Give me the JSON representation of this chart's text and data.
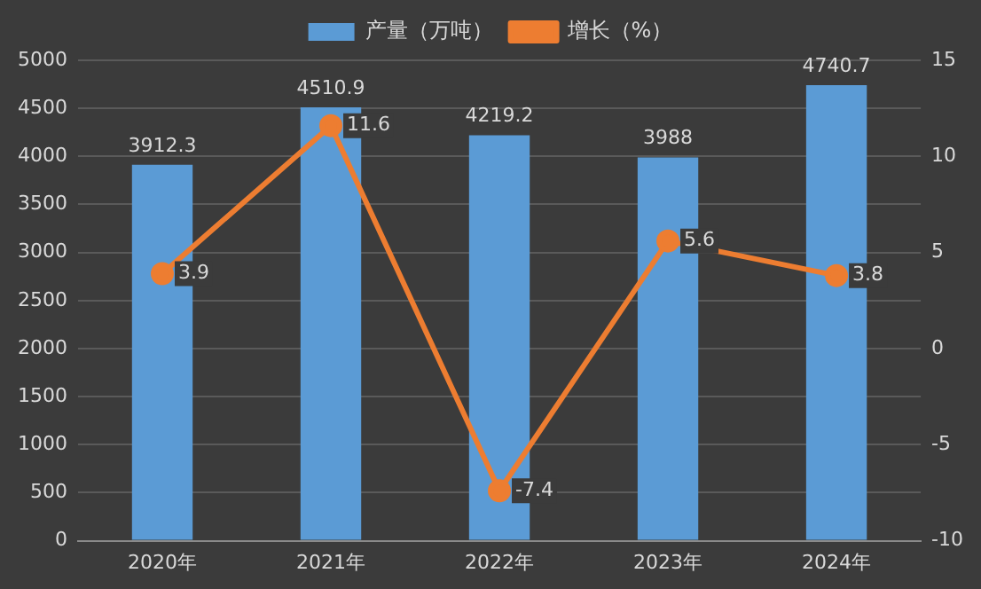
{
  "chart_data": {
    "type": "bar",
    "categories": [
      "2020年",
      "2021年",
      "2022年",
      "2023年",
      "2024年"
    ],
    "series": [
      {
        "name": "产量（万吨）",
        "color": "#5b9bd5",
        "values": [
          3912.3,
          4510.9,
          4219.2,
          3988,
          4740.7
        ]
      },
      {
        "name": "增长（%）",
        "type": "line",
        "axis": "y2",
        "color": "#ed7d31",
        "values": [
          3.9,
          11.6,
          -7.4,
          5.6,
          3.8
        ]
      }
    ],
    "ylim": [
      0,
      5000
    ],
    "yticks": [
      0,
      500,
      1000,
      1500,
      2000,
      2500,
      3000,
      3500,
      4000,
      4500,
      5000
    ],
    "y2lim": [
      -10,
      15
    ],
    "y2ticks": [
      -10,
      -5,
      0,
      5,
      10,
      15
    ],
    "grid": "y",
    "legend": "top",
    "marker": "circle",
    "data_labels": true
  }
}
